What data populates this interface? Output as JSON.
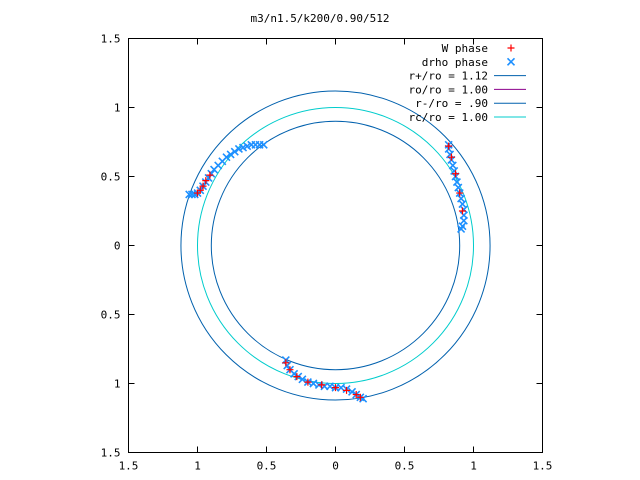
{
  "chart_data": {
    "type": "scatter",
    "title": "m3/n1.5/k200/0.90/512",
    "xlabel": "",
    "ylabel": "",
    "xlim": [
      -1.5,
      1.5
    ],
    "ylim": [
      -1.5,
      1.5
    ],
    "x_ticks": [
      "1.5",
      "1",
      "0.5",
      "0",
      "0.5",
      "1",
      "1.5"
    ],
    "y_ticks": [
      "1.5",
      "1",
      "0.5",
      "0",
      "0.5",
      "1",
      "1.5"
    ],
    "grid": false,
    "legend_position": "top-right",
    "circles": [
      {
        "name": "r+/ro = 1.12",
        "r": 1.12,
        "color": "#0060ad"
      },
      {
        "name": "ro/ro = 1.00",
        "r": 1.0,
        "color": "#8b008b",
        "drawn": false
      },
      {
        "name": "r-/ro = .90",
        "r": 0.9,
        "color": "#0060ad"
      },
      {
        "name": "rc/ro = 1.00",
        "r": 1.0,
        "color": "#00cccc"
      }
    ],
    "series": [
      {
        "name": "W phase",
        "marker": "plus",
        "color": "#ff0000",
        "points": [
          [
            -1.0,
            0.38
          ],
          [
            -0.98,
            0.4
          ],
          [
            -0.96,
            0.43
          ],
          [
            -0.94,
            0.47
          ],
          [
            -0.91,
            0.51
          ],
          [
            0.82,
            0.72
          ],
          [
            0.84,
            0.64
          ],
          [
            0.87,
            0.52
          ],
          [
            0.9,
            0.38
          ],
          [
            0.92,
            0.25
          ],
          [
            -0.36,
            -0.85
          ],
          [
            -0.33,
            -0.9
          ],
          [
            -0.28,
            -0.95
          ],
          [
            -0.2,
            -0.99
          ],
          [
            -0.1,
            -1.01
          ],
          [
            0.0,
            -1.03
          ],
          [
            0.08,
            -1.05
          ],
          [
            0.15,
            -1.08
          ],
          [
            0.18,
            -1.1
          ]
        ]
      },
      {
        "name": "drho phase",
        "marker": "cross",
        "color": "#1e90ff",
        "points": [
          [
            -1.06,
            0.37
          ],
          [
            -1.04,
            0.37
          ],
          [
            -1.02,
            0.37
          ],
          [
            -1.0,
            0.38
          ],
          [
            -0.98,
            0.4
          ],
          [
            -0.96,
            0.43
          ],
          [
            -0.94,
            0.46
          ],
          [
            -0.92,
            0.49
          ],
          [
            -0.9,
            0.52
          ],
          [
            -0.88,
            0.55
          ],
          [
            -0.85,
            0.58
          ],
          [
            -0.82,
            0.61
          ],
          [
            -0.79,
            0.64
          ],
          [
            -0.76,
            0.66
          ],
          [
            -0.73,
            0.68
          ],
          [
            -0.7,
            0.7
          ],
          [
            -0.67,
            0.71
          ],
          [
            -0.64,
            0.72
          ],
          [
            -0.61,
            0.73
          ],
          [
            -0.58,
            0.73
          ],
          [
            -0.55,
            0.73
          ],
          [
            -0.52,
            0.73
          ],
          [
            0.82,
            0.73
          ],
          [
            0.82,
            0.7
          ],
          [
            0.83,
            0.66
          ],
          [
            0.84,
            0.62
          ],
          [
            0.85,
            0.58
          ],
          [
            0.86,
            0.54
          ],
          [
            0.87,
            0.5
          ],
          [
            0.88,
            0.46
          ],
          [
            0.89,
            0.42
          ],
          [
            0.9,
            0.38
          ],
          [
            0.91,
            0.34
          ],
          [
            0.92,
            0.3
          ],
          [
            0.93,
            0.26
          ],
          [
            0.93,
            0.22
          ],
          [
            0.93,
            0.18
          ],
          [
            0.92,
            0.14
          ],
          [
            0.91,
            0.12
          ],
          [
            -0.36,
            -0.83
          ],
          [
            -0.35,
            -0.87
          ],
          [
            -0.33,
            -0.9
          ],
          [
            -0.3,
            -0.93
          ],
          [
            -0.27,
            -0.95
          ],
          [
            -0.24,
            -0.97
          ],
          [
            -0.2,
            -0.99
          ],
          [
            -0.16,
            -1.0
          ],
          [
            -0.12,
            -1.01
          ],
          [
            -0.08,
            -1.02
          ],
          [
            -0.04,
            -1.02
          ],
          [
            0.0,
            -1.03
          ],
          [
            0.04,
            -1.03
          ],
          [
            0.08,
            -1.04
          ],
          [
            0.12,
            -1.06
          ],
          [
            0.15,
            -1.08
          ],
          [
            0.18,
            -1.1
          ],
          [
            0.2,
            -1.11
          ]
        ]
      }
    ]
  }
}
